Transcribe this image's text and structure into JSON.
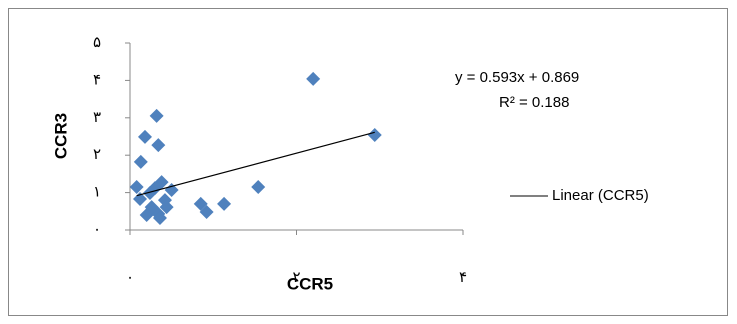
{
  "chart_data": {
    "type": "scatter",
    "x_label": "CCR5",
    "y_label": "CCR3",
    "series": [
      {
        "color": "#4f81bd",
        "x": [
          2.2,
          2.94,
          0.32,
          0.18,
          0.34,
          0.13,
          0.08,
          0.12,
          1.54,
          1.13,
          0.85,
          0.92,
          0.24,
          0.3,
          0.38,
          0.5,
          0.42,
          0.2,
          0.34,
          0.36,
          0.44,
          0.26
        ],
        "values": [
          4.04,
          2.54,
          3.05,
          2.49,
          2.27,
          1.82,
          1.15,
          0.83,
          1.15,
          0.7,
          0.7,
          0.48,
          0.99,
          1.12,
          1.28,
          1.07,
          0.8,
          0.4,
          0.43,
          0.32,
          0.61,
          0.61
        ]
      }
    ],
    "trendline": {
      "name": "Linear (CCR5)",
      "slope": 0.593,
      "intercept": 0.869,
      "equation": "y = 0.593x + 0.869",
      "r2": "R² = 0.188",
      "color": "#000000"
    },
    "xlim": [
      0,
      4
    ],
    "ylim": [
      0,
      5
    ],
    "xticks": [
      {
        "value": 0,
        "label": "۰"
      },
      {
        "value": 2,
        "label": "۲"
      },
      {
        "value": 4,
        "label": "۴"
      }
    ],
    "yticks": [
      {
        "value": 0,
        "label": "۰"
      },
      {
        "value": 1,
        "label": "۱"
      },
      {
        "value": 2,
        "label": "۲"
      },
      {
        "value": 3,
        "label": "۳"
      },
      {
        "value": 4,
        "label": "۴"
      },
      {
        "value": 5,
        "label": "۵"
      }
    ],
    "grid": false
  }
}
